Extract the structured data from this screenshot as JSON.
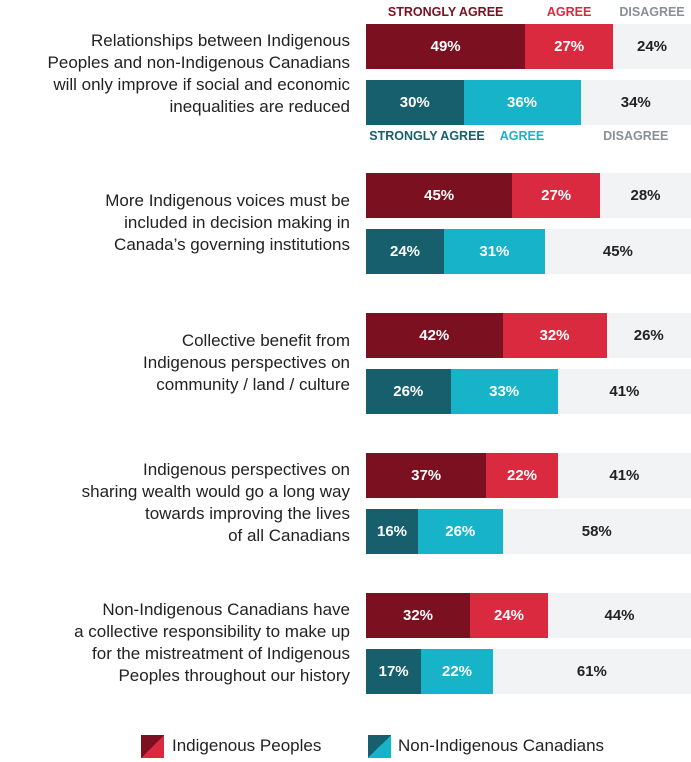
{
  "chart_data": {
    "type": "stacked-bar-horizontal-grouped",
    "xlim": [
      0,
      100
    ],
    "categories": [
      "Relationships between Indigenous\nPeoples and non-Indigenous Canadians\nwill only improve if social and economic\ninequalities are reduced",
      "More Indigenous voices must be\nincluded in decision making in\nCanada’s governing institutions",
      "Collective benefit from\nIndigenous perspectives on\ncommunity / land / culture",
      "Indigenous perspectives on\nsharing wealth would go a long way\ntowards improving the lives\nof all Canadians",
      "Non-Indigenous Canadians have\na collective responsibility to make up\nfor the mistreatment of Indigenous\nPeoples throughout our history"
    ],
    "groups": [
      {
        "name": "Indigenous Peoples",
        "series": [
          {
            "name": "STRONGLY AGREE",
            "color": "#7b1120",
            "values": [
              49,
              45,
              42,
              37,
              32
            ],
            "value_labels": [
              "49%",
              "45%",
              "42%",
              "37%",
              "32%"
            ]
          },
          {
            "name": "AGREE",
            "color": "#d92a3f",
            "values": [
              27,
              27,
              32,
              22,
              24
            ],
            "value_labels": [
              "27%",
              "27%",
              "32%",
              "22%",
              "24%"
            ]
          },
          {
            "name": "DISAGREE",
            "color": "#f2f3f5",
            "values": [
              24,
              28,
              26,
              41,
              44
            ],
            "value_labels": [
              "24%",
              "28%",
              "26%",
              "41%",
              "44%"
            ]
          }
        ]
      },
      {
        "name": "Non-Indigenous Canadians",
        "series": [
          {
            "name": "STRONGLY AGREE",
            "color": "#175f6c",
            "values": [
              30,
              24,
              26,
              16,
              17
            ],
            "value_labels": [
              "30%",
              "24%",
              "26%",
              "16%",
              "17%"
            ]
          },
          {
            "name": "AGREE",
            "color": "#17b3c8",
            "values": [
              36,
              31,
              33,
              26,
              22
            ],
            "value_labels": [
              "36%",
              "31%",
              "33%",
              "26%",
              "22%"
            ]
          },
          {
            "name": "DISAGREE",
            "color": "#f2f3f5",
            "values": [
              34,
              45,
              41,
              58,
              61
            ],
            "value_labels": [
              "34%",
              "45%",
              "41%",
              "58%",
              "61%"
            ]
          }
        ]
      }
    ]
  }
}
